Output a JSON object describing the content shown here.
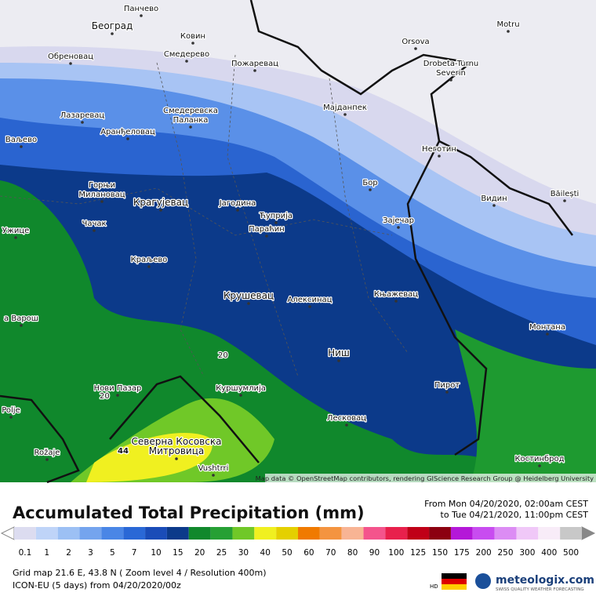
{
  "map": {
    "cities": [
      {
        "lines": [
          "Панчево"
        ]
      },
      {
        "lines": [
          "Београд"
        ]
      },
      {
        "lines": [
          "Ковин"
        ]
      },
      {
        "lines": [
          "Смедерево"
        ]
      },
      {
        "lines": [
          "Обреновац"
        ]
      },
      {
        "lines": [
          "Пожаревац"
        ]
      },
      {
        "lines": [
          "Orsova"
        ]
      },
      {
        "lines": [
          "Drobeta-Turnu",
          "Severin"
        ]
      },
      {
        "lines": [
          "Motru"
        ]
      },
      {
        "lines": [
          "Мајданпек"
        ]
      },
      {
        "lines": [
          "Смедеревска",
          "Паланка"
        ]
      },
      {
        "lines": [
          "Лазаревац"
        ]
      },
      {
        "lines": [
          "Аранђеловац"
        ]
      },
      {
        "lines": [
          "Ваљево"
        ]
      },
      {
        "lines": [
          "Неготин"
        ]
      },
      {
        "lines": [
          "Бор"
        ]
      },
      {
        "lines": [
          "Видин"
        ]
      },
      {
        "lines": [
          "Băilești"
        ]
      },
      {
        "lines": [
          "Горњи",
          "Милановац"
        ]
      },
      {
        "lines": [
          "Крагујевац"
        ]
      },
      {
        "lines": [
          "Јагодина"
        ]
      },
      {
        "lines": [
          "Ћуприја"
        ]
      },
      {
        "lines": [
          "Параћин"
        ]
      },
      {
        "lines": [
          "Зајечар"
        ]
      },
      {
        "lines": [
          "Чачак"
        ]
      },
      {
        "lines": [
          "Ужице"
        ]
      },
      {
        "lines": [
          "Краљево"
        ]
      },
      {
        "lines": [
          "Крушевац"
        ]
      },
      {
        "lines": [
          "Алексинац"
        ]
      },
      {
        "lines": [
          "Књажевац"
        ]
      },
      {
        "lines": [
          "Монтана"
        ]
      },
      {
        "lines": [
          "Ниш"
        ]
      },
      {
        "lines": [
          "Нови Пазар"
        ]
      },
      {
        "lines": [
          "Куршумлија"
        ]
      },
      {
        "lines": [
          "Пирот"
        ]
      },
      {
        "lines": [
          "Лесковац"
        ]
      },
      {
        "lines": [
          "Северна Косовска",
          "Митровица"
        ]
      },
      {
        "lines": [
          "Rožaje"
        ]
      },
      {
        "lines": [
          "Polje"
        ]
      },
      {
        "lines": [
          "Костинброд"
        ]
      },
      {
        "lines": [
          "Vushtrri"
        ]
      },
      {
        "lines": [
          "а Варош"
        ]
      }
    ],
    "contour_labels": [
      "20",
      "20",
      "44"
    ],
    "attribution": "Map data © OpenStreetMap contributors, rendering GIScience Research Group @ Heidelberg University"
  },
  "footer": {
    "title": "Accumulated Total Precipitation (mm)",
    "from": "From Mon 04/20/2020, 02:00am CEST",
    "to": "to Tue 04/21/2020, 11:00pm CEST",
    "grid": "Grid map 21.6 E, 43.8 N ( Zoom level 4 / Resolution 400m)",
    "model": "ICON-EU (5 days) from 04/20/2020/00z",
    "hd": "HD",
    "brand": "meteologix.com",
    "tagline": "SWISS QUALITY WEATHER FORECASTING"
  },
  "legend": {
    "values": [
      0.1,
      1,
      2,
      3,
      5,
      7,
      10,
      15,
      20,
      25,
      30,
      40,
      50,
      60,
      70,
      80,
      90,
      100,
      125,
      150,
      175,
      200,
      250,
      300,
      400,
      500
    ],
    "colors": [
      "#dcdcf0",
      "#bfd4f8",
      "#9cc0f4",
      "#74a4ee",
      "#4a86e6",
      "#2a68d6",
      "#1a4cb8",
      "#0c3a8a",
      "#10882c",
      "#26a034",
      "#70c828",
      "#f0f020",
      "#e4d000",
      "#f07a00",
      "#f49440",
      "#f8b494",
      "#f4548c",
      "#e8204c",
      "#c00018",
      "#8c0010",
      "#b418d8",
      "#c84cf0",
      "#dc8cf4",
      "#f0c8f8",
      "#f8ecf8",
      "#c8c8c8"
    ]
  }
}
